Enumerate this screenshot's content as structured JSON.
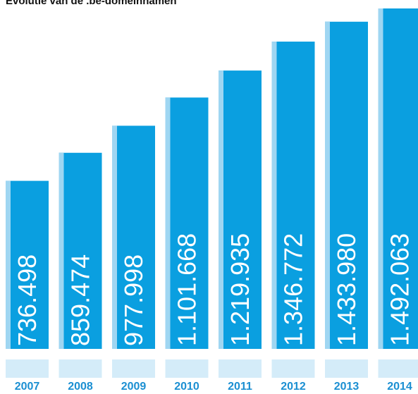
{
  "chart_data": {
    "type": "bar",
    "title": "Evolutie van de .be-domeinnamen",
    "categories": [
      "2007",
      "2008",
      "2009",
      "2010",
      "2011",
      "2012",
      "2013",
      "2014"
    ],
    "values": [
      736498,
      859474,
      977998,
      1101668,
      1219935,
      1346772,
      1433980,
      1492063
    ],
    "value_labels": [
      "736.498",
      "859.474",
      "977.998",
      "1.101.668",
      "1.219.935",
      "1.346.772",
      "1.433.980",
      "1.492.063"
    ],
    "color": "#0a9fe0"
  }
}
